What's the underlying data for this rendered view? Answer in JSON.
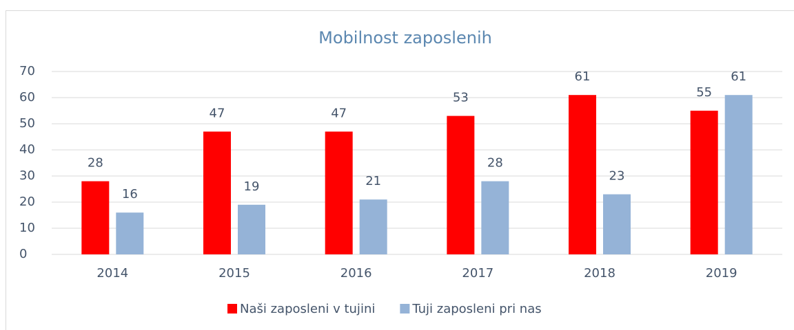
{
  "chart_data": {
    "type": "bar",
    "title": "Mobilnost zaposlenih",
    "categories": [
      "2014",
      "2015",
      "2016",
      "2017",
      "2018",
      "2019"
    ],
    "series": [
      {
        "name": "Naši zaposleni v tujini",
        "color": "#ff0000",
        "values": [
          28,
          47,
          47,
          53,
          61,
          55
        ]
      },
      {
        "name": "Tuji zaposleni pri nas",
        "color": "#95b3d7",
        "values": [
          16,
          19,
          21,
          28,
          23,
          61
        ]
      }
    ],
    "ylim": [
      0,
      70
    ],
    "yticks": [
      0,
      10,
      20,
      30,
      40,
      50,
      60,
      70
    ],
    "grid": true,
    "legend": "bottom"
  }
}
